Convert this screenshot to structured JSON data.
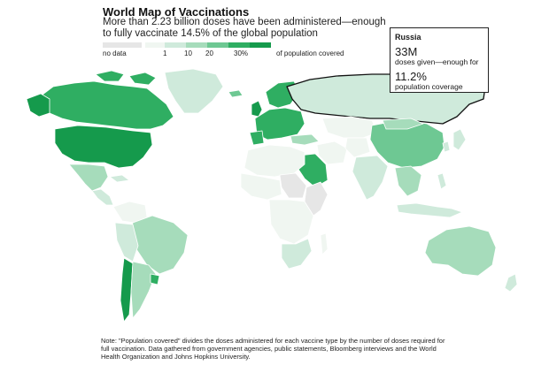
{
  "header": {
    "title": "World Map of Vaccinations",
    "subtitle": "More than 2.23 billion doses have been administered—enough to fully vaccinate 14.5% of the global population"
  },
  "legend": {
    "no_data_label": "no data",
    "tick_labels": [
      "1",
      "10",
      "20",
      "30%"
    ],
    "suffix": "of population covered",
    "colors": {
      "no_data": "#e6e6e6",
      "bin0": "#f0f6f1",
      "bin1": "#cfeadb",
      "bin2": "#a6dcbb",
      "bin3": "#6ec893",
      "bin4": "#2fae62",
      "bin5": "#159a4c"
    }
  },
  "tooltip": {
    "country": "Russia",
    "doses": "33M",
    "doses_text": "doses given—enough for",
    "coverage": "11.2%",
    "coverage_text": "population coverage"
  },
  "note": "Note: \"Population covered\" divides the doses administered for each vaccine type by the number of doses required for full vaccination. Data gathered from government agencies, public statements, Bloomberg interviews and the World Health Organization and Johns Hopkins University."
}
